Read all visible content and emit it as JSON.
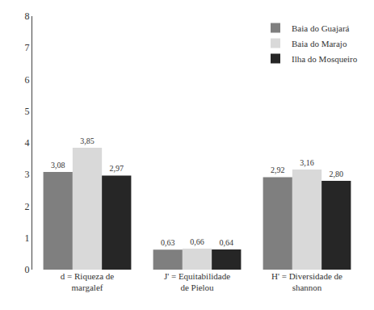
{
  "chart_data": {
    "type": "bar",
    "categories": [
      "d = Riqueza de\nmargalef",
      "J' = Equitabilidade\nde Pielou",
      "H' = Diversidade de\nshannon"
    ],
    "series": [
      {
        "name": "Baia do Guajará",
        "color": "#7f7f7f",
        "values": [
          3.08,
          0.63,
          2.92
        ],
        "value_labels": [
          "3,08",
          "0,63",
          "2,92"
        ]
      },
      {
        "name": "Baia do Marajo",
        "color": "#d9d9d9",
        "values": [
          3.85,
          0.66,
          3.16
        ],
        "value_labels": [
          "3,85",
          "0,66",
          "3,16"
        ]
      },
      {
        "name": "Ilha do Mosqueiro",
        "color": "#262626",
        "values": [
          2.97,
          0.64,
          2.8
        ],
        "value_labels": [
          "2,97",
          "0,64",
          "2,80"
        ]
      }
    ],
    "ylim": [
      0,
      8
    ],
    "yticks": [
      0,
      1,
      2,
      3,
      4,
      5,
      6,
      7,
      8
    ],
    "grid": false,
    "legend": "upper right",
    "data_labels": true
  }
}
